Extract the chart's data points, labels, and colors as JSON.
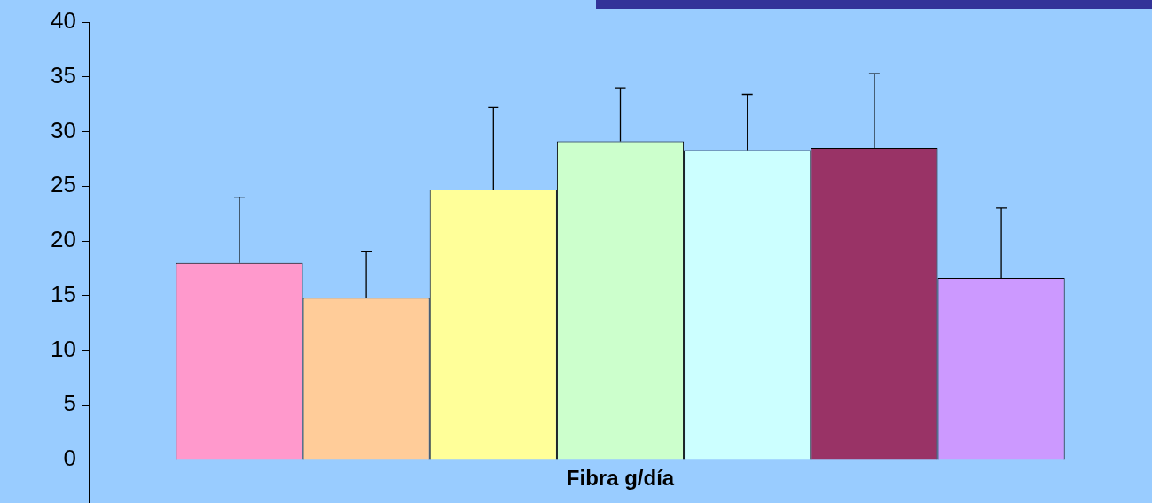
{
  "chart_data": {
    "type": "bar",
    "categories": [
      "Fibra g/día"
    ],
    "series": [
      {
        "color": "#ff99cc",
        "values": [
          18
        ],
        "errors": [
          [
            18,
            24
          ]
        ]
      },
      {
        "color": "#ffcc99",
        "values": [
          14.8
        ],
        "errors": [
          [
            14.8,
            19
          ]
        ]
      },
      {
        "color": "#ffff99",
        "values": [
          24.7
        ],
        "errors": [
          [
            24.7,
            32.2
          ]
        ]
      },
      {
        "color": "#ccffcc",
        "values": [
          29.1
        ],
        "errors": [
          [
            29.1,
            34
          ]
        ]
      },
      {
        "color": "#ccffff",
        "values": [
          28.3
        ],
        "errors": [
          [
            28.3,
            33.4
          ]
        ]
      },
      {
        "color": "#993366",
        "values": [
          28.5
        ],
        "errors": [
          [
            28.5,
            35.3
          ]
        ]
      },
      {
        "color": "#cc99ff",
        "values": [
          16.6
        ],
        "errors": [
          [
            16.6,
            23
          ]
        ]
      }
    ],
    "ylim": [
      0,
      40
    ],
    "yticks": [
      0,
      5,
      10,
      15,
      20,
      25,
      30,
      35,
      40
    ],
    "grid": false,
    "legend": false
  }
}
